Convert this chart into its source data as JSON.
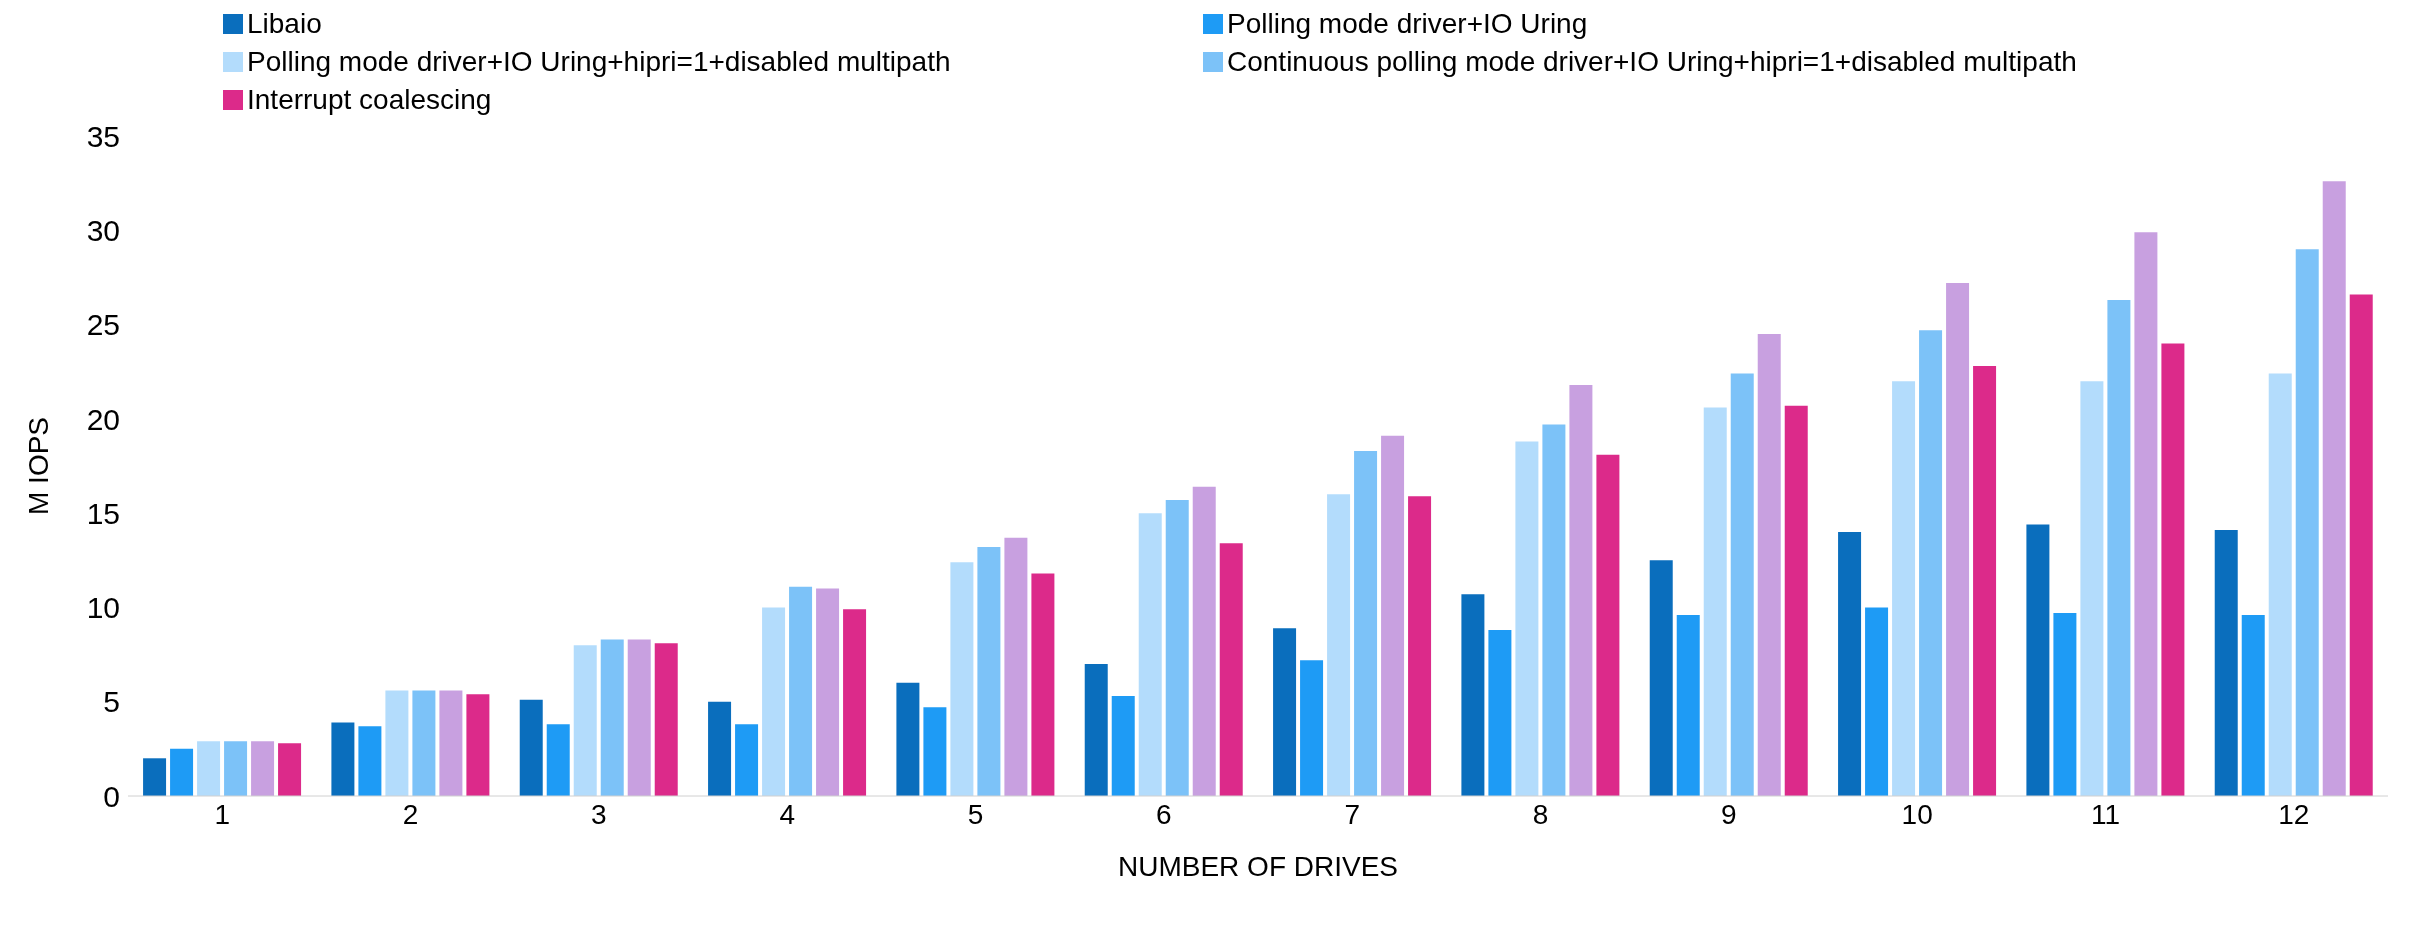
{
  "chart_data": {
    "type": "bar",
    "xlabel": "NUMBER OF DRIVES",
    "ylabel": "M IOPS",
    "categories": [
      "1",
      "2",
      "3",
      "4",
      "5",
      "6",
      "7",
      "8",
      "9",
      "10",
      "11",
      "12"
    ],
    "series": [
      {
        "name": "Libaio",
        "color": "#0a6ebd",
        "values": [
          2.0,
          3.9,
          5.1,
          5.0,
          6.0,
          7.0,
          8.9,
          10.7,
          12.5,
          14.0,
          14.4,
          14.1
        ]
      },
      {
        "name": "Polling mode driver+IO Uring",
        "color": "#1e9bf5",
        "values": [
          2.5,
          3.7,
          3.8,
          3.8,
          4.7,
          5.3,
          7.2,
          8.8,
          9.6,
          10.0,
          9.7,
          9.6
        ]
      },
      {
        "name": "Polling mode driver+IO Uring+hipri=1+disabled multipath",
        "color": "#b3dcfc",
        "values": [
          2.9,
          5.6,
          8.0,
          10.0,
          12.4,
          15.0,
          16.0,
          18.8,
          20.6,
          22.0,
          22.0,
          22.4
        ]
      },
      {
        "name": "Continuous polling mode driver+IO Uring+hipri=1+disabled multipath",
        "color": "#7cc2f8",
        "values": [
          2.9,
          5.6,
          8.3,
          11.1,
          13.2,
          15.7,
          18.3,
          19.7,
          22.4,
          24.7,
          26.3,
          29.0
        ]
      },
      {
        "color": "#c8a0e0",
        "values": [
          2.9,
          5.6,
          8.3,
          11.0,
          13.7,
          16.4,
          19.1,
          21.8,
          24.5,
          27.2,
          29.9,
          32.6
        ]
      },
      {
        "name": "Interrupt coalescing",
        "color": "#dc2a8a",
        "values": [
          2.8,
          5.4,
          8.1,
          9.9,
          11.8,
          13.4,
          15.9,
          18.1,
          20.7,
          22.8,
          24.0,
          26.6
        ]
      }
    ],
    "ylim": [
      0,
      35
    ],
    "yticks": [
      0,
      5,
      10,
      15,
      20,
      25,
      30,
      35
    ],
    "grid": false,
    "legend": "top"
  }
}
